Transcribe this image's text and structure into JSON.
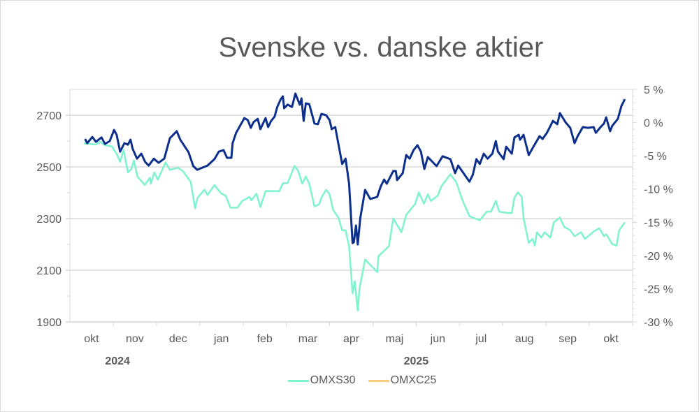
{
  "chart_data": {
    "type": "line",
    "title": "Svenske vs. danske aktier",
    "x_unit": "months since start of okt 2024",
    "x_categories": [
      "okt",
      "nov",
      "dec",
      "jan",
      "feb",
      "mar",
      "apr",
      "maj",
      "jun",
      "jul",
      "aug",
      "sep",
      "okt"
    ],
    "year_labels": [
      {
        "label": "2024",
        "month_index": 1
      },
      {
        "label": "2025",
        "month_index": 7.9
      }
    ],
    "xlim": [
      0,
      13
    ],
    "left_axis": {
      "ylim": [
        1900,
        2800
      ],
      "ticks": [
        1900,
        2100,
        2300,
        2500,
        2700
      ]
    },
    "right_axis": {
      "ylim": [
        -30,
        5
      ],
      "ticks": [
        5,
        0,
        -5,
        -10,
        -15,
        -20,
        -25,
        -30
      ],
      "tick_labels": [
        "5 %",
        "0 %",
        "-5 %",
        "-10 %",
        "-15 %",
        "-20 %",
        "-25 %",
        "-30 %"
      ]
    },
    "grid": true,
    "legend": {
      "position": "bottom",
      "entries": [
        {
          "label": "OMXS30",
          "color": "#7ff2cf"
        },
        {
          "label": "OMXC25",
          "color": "#ffcc80"
        }
      ]
    },
    "series": [
      {
        "name": "OMXS30",
        "axis": "left",
        "color": "#0d2f8c",
        "x": [
          0.35,
          0.4,
          0.52,
          0.6,
          0.73,
          0.81,
          0.92,
          1.02,
          1.08,
          1.16,
          1.26,
          1.34,
          1.4,
          1.45,
          1.55,
          1.65,
          1.74,
          1.82,
          1.94,
          2.05,
          2.18,
          2.31,
          2.47,
          2.55,
          2.74,
          2.85,
          2.94,
          3.18,
          3.34,
          3.44,
          3.55,
          3.63,
          3.73,
          3.76,
          3.84,
          4.03,
          4.11,
          4.18,
          4.24,
          4.34,
          4.4,
          4.52,
          4.58,
          4.65,
          4.73,
          4.79,
          4.87,
          4.92,
          4.95,
          5.03,
          5.13,
          5.21,
          5.31,
          5.35,
          5.4,
          5.45,
          5.53,
          5.65,
          5.73,
          5.81,
          5.92,
          6.0,
          6.05,
          6.13,
          6.29,
          6.37,
          6.45,
          6.53,
          6.56,
          6.61,
          6.65,
          6.71,
          6.82,
          6.94,
          7.1,
          7.18,
          7.26,
          7.32,
          7.47,
          7.53,
          7.56,
          7.69,
          7.77,
          7.85,
          7.94,
          8.03,
          8.11,
          8.19,
          8.27,
          8.47,
          8.61,
          8.79,
          8.9,
          8.97,
          9.23,
          9.31,
          9.39,
          9.47,
          9.56,
          9.65,
          9.76,
          9.84,
          9.89,
          10.02,
          10.08,
          10.21,
          10.27,
          10.37,
          10.4,
          10.48,
          10.6,
          10.73,
          10.85,
          10.92,
          11.02,
          11.08,
          11.16,
          11.26,
          11.32,
          11.45,
          11.56,
          11.66,
          11.73,
          11.85,
          11.97,
          12.1,
          12.15,
          12.26,
          12.34,
          12.39,
          12.48,
          12.53,
          12.66,
          12.74,
          12.82
        ],
        "y": [
          2608,
          2592,
          2616,
          2597,
          2614,
          2589,
          2600,
          2643,
          2624,
          2559,
          2592,
          2586,
          2605,
          2570,
          2532,
          2551,
          2519,
          2505,
          2532,
          2516,
          2532,
          2611,
          2638,
          2605,
          2557,
          2503,
          2489,
          2505,
          2530,
          2559,
          2565,
          2535,
          2535,
          2592,
          2632,
          2689,
          2681,
          2651,
          2673,
          2686,
          2646,
          2689,
          2654,
          2678,
          2695,
          2732,
          2762,
          2773,
          2727,
          2741,
          2732,
          2784,
          2741,
          2765,
          2678,
          2746,
          2743,
          2668,
          2665,
          2705,
          2700,
          2681,
          2646,
          2654,
          2511,
          2532,
          2435,
          2205,
          2208,
          2273,
          2200,
          2303,
          2411,
          2376,
          2384,
          2424,
          2451,
          2435,
          2484,
          2484,
          2449,
          2476,
          2546,
          2532,
          2565,
          2584,
          2559,
          2492,
          2538,
          2503,
          2541,
          2530,
          2476,
          2505,
          2443,
          2470,
          2530,
          2511,
          2551,
          2532,
          2551,
          2600,
          2559,
          2530,
          2578,
          2551,
          2614,
          2624,
          2605,
          2624,
          2546,
          2584,
          2619,
          2608,
          2632,
          2651,
          2678,
          2665,
          2708,
          2673,
          2651,
          2592,
          2619,
          2654,
          2651,
          2654,
          2632,
          2654,
          2668,
          2692,
          2638,
          2659,
          2686,
          2735,
          2762
        ]
      },
      {
        "name": "OMXC25",
        "axis": "right",
        "color": "#7ff2cf",
        "x": [
          0.32,
          0.6,
          0.69,
          0.81,
          0.97,
          1.08,
          1.16,
          1.24,
          1.34,
          1.42,
          1.48,
          1.56,
          1.73,
          1.85,
          1.87,
          1.95,
          2.03,
          2.21,
          2.31,
          2.5,
          2.61,
          2.69,
          2.79,
          2.89,
          2.95,
          3.11,
          3.18,
          3.34,
          3.5,
          3.6,
          3.71,
          3.87,
          3.98,
          4.15,
          4.19,
          4.31,
          4.4,
          4.52,
          4.65,
          4.84,
          4.92,
          5.03,
          5.19,
          5.27,
          5.37,
          5.45,
          5.53,
          5.65,
          5.76,
          5.81,
          5.92,
          6.0,
          6.08,
          6.21,
          6.29,
          6.37,
          6.45,
          6.53,
          6.58,
          6.65,
          6.69,
          6.82,
          7.1,
          7.13,
          7.37,
          7.47,
          7.66,
          7.77,
          7.98,
          8.06,
          8.18,
          8.27,
          8.34,
          8.5,
          8.58,
          8.79,
          8.92,
          9.06,
          9.23,
          9.35,
          9.47,
          9.63,
          9.73,
          9.84,
          9.92,
          10.11,
          10.21,
          10.27,
          10.35,
          10.44,
          10.48,
          10.6,
          10.69,
          10.74,
          10.79,
          10.89,
          10.97,
          11.1,
          11.18,
          11.32,
          11.42,
          11.56,
          11.66,
          11.81,
          11.9,
          12.1,
          12.23,
          12.34,
          12.39,
          12.53,
          12.63,
          12.69,
          12.82
        ],
        "y": [
          -3.1,
          -3.3,
          -2.9,
          -3.4,
          -3.6,
          -4.7,
          -5.9,
          -4.1,
          -7.5,
          -7.0,
          -5.7,
          -8.1,
          -9.4,
          -8.3,
          -9.2,
          -7.5,
          -8.6,
          -6.0,
          -7.1,
          -6.8,
          -7.3,
          -8.0,
          -8.9,
          -12.9,
          -11.3,
          -10.1,
          -10.9,
          -9.4,
          -10.7,
          -11.0,
          -12.8,
          -12.8,
          -11.8,
          -11.2,
          -11.7,
          -10.7,
          -12.7,
          -10.3,
          -10.3,
          -10.3,
          -9.1,
          -9.1,
          -6.5,
          -7.2,
          -9.2,
          -8.1,
          -9.2,
          -12.6,
          -12.3,
          -11.3,
          -10.1,
          -10.8,
          -13.1,
          -14.4,
          -16.2,
          -16.2,
          -18.6,
          -25.7,
          -23.9,
          -28.3,
          -25.0,
          -20.6,
          -22.5,
          -20.1,
          -18.6,
          -14.4,
          -16.5,
          -13.9,
          -12.2,
          -10.5,
          -12.2,
          -10.8,
          -11.8,
          -11.0,
          -9.6,
          -7.8,
          -8.9,
          -11.5,
          -14.1,
          -14.4,
          -14.7,
          -13.4,
          -13.4,
          -11.8,
          -13.4,
          -13.6,
          -13.6,
          -11.3,
          -10.5,
          -11.2,
          -14.4,
          -18.1,
          -17.5,
          -18.5,
          -16.5,
          -17.3,
          -16.5,
          -17.3,
          -15.0,
          -14.3,
          -15.7,
          -16.2,
          -17.1,
          -16.5,
          -17.5,
          -16.4,
          -15.9,
          -17.1,
          -16.8,
          -18.3,
          -18.5,
          -16.2,
          -15.0
        ]
      }
    ]
  }
}
